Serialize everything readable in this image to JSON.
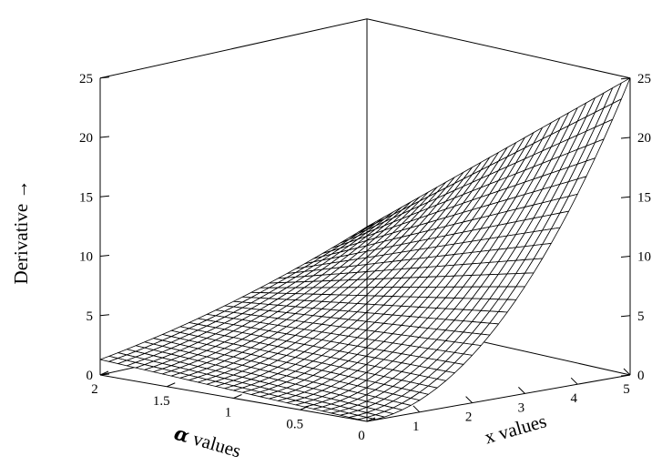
{
  "chart_data": {
    "type": "surface",
    "z_label": "Derivative →",
    "x_label": "x values",
    "alpha_label": {
      "symbol": "α",
      "text": " values"
    },
    "x_range": [
      0,
      5
    ],
    "alpha_range": [
      0,
      2
    ],
    "z_range": [
      0,
      25
    ],
    "z_ticks_left": [
      "0",
      "5",
      "10",
      "15",
      "20",
      "25"
    ],
    "z_ticks_right": [
      "0",
      "5",
      "10",
      "15",
      "20",
      "25"
    ],
    "x_ticks": [
      "1",
      "2",
      "3",
      "4",
      "5"
    ],
    "alpha_ticks": [
      "0",
      "0.5",
      "1",
      "1.5",
      "2"
    ],
    "grid_steps": 30,
    "corner_values": [
      {
        "x": 0,
        "alpha": 0,
        "z": 0
      },
      {
        "x": 5,
        "alpha": 0,
        "z": 25
      },
      {
        "x": 0,
        "alpha": 2,
        "z": 1.3
      },
      {
        "x": 5,
        "alpha": 2,
        "z": 7.5
      }
    ],
    "style": {
      "line_color": "#000000",
      "surface_fill": "#ffffff"
    }
  }
}
